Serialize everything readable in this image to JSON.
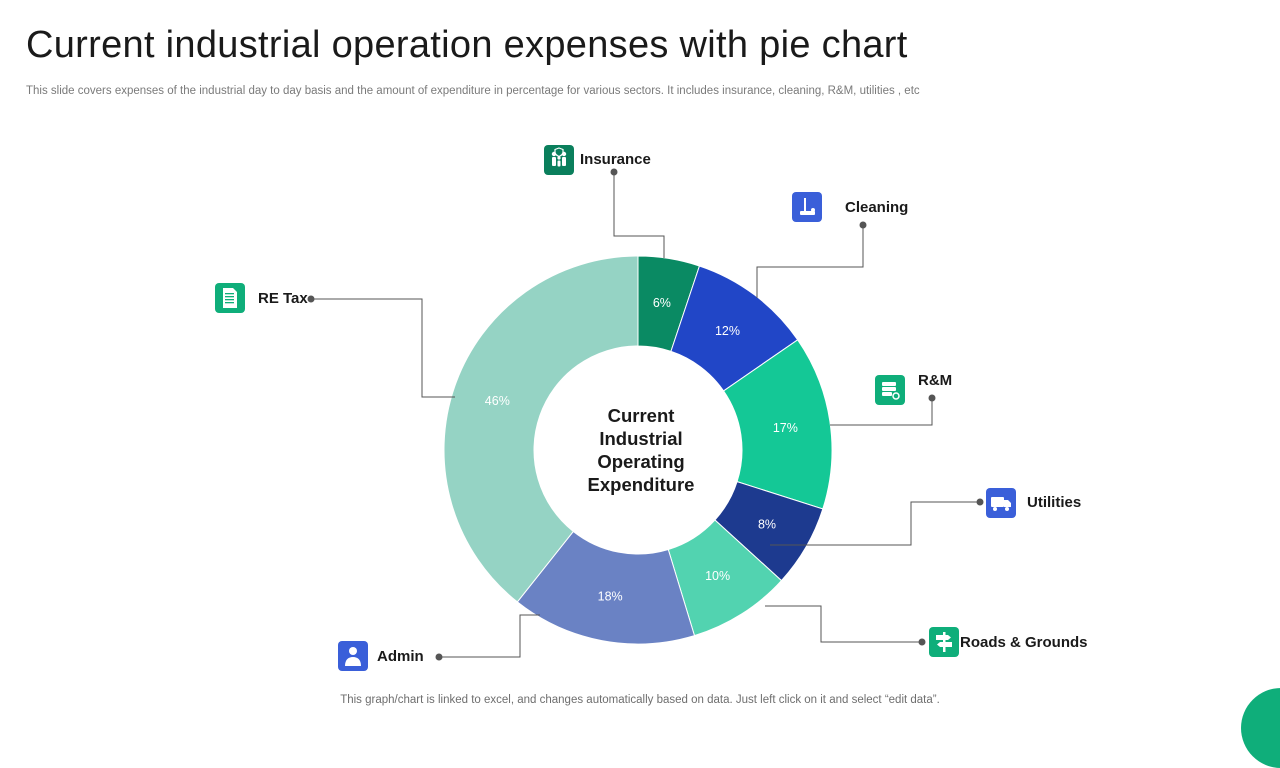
{
  "slide": {
    "title": "Current industrial operation expenses with pie chart",
    "subtitle": "This slide covers expenses of the industrial day to day basis  and the amount of expenditure in percentage for various sectors. It includes insurance, cleaning, R&M, utilities , etc",
    "footer": "This graph/chart is linked to excel,  and changes automatically based on data. Just left click on it and select “edit data”."
  },
  "chart_data": {
    "type": "pie",
    "variant": "donut",
    "center_label": [
      "Current",
      "Industrial",
      "Operating",
      "Expenditure"
    ],
    "unit": "%",
    "slices": [
      {
        "name": "Insurance",
        "value": 6,
        "color": "#0a8a63",
        "icon": "family-shield-icon"
      },
      {
        "name": "Cleaning",
        "value": 12,
        "color": "#2146c7",
        "icon": "cleaning-vacuum-icon"
      },
      {
        "name": "R&M",
        "value": 17,
        "color": "#14c896",
        "icon": "maintenance-tools-icon"
      },
      {
        "name": "Utilities",
        "value": 8,
        "color": "#1d3a8f",
        "icon": "truck-icon"
      },
      {
        "name": "Roads & Grounds",
        "value": 10,
        "color": "#52d3b0",
        "icon": "signpost-icon"
      },
      {
        "name": "Admin",
        "value": 18,
        "color": "#6a82c4",
        "icon": "admin-person-icon"
      },
      {
        "name": "RE Tax",
        "value": 46,
        "color": "#95d3c4",
        "icon": "tax-document-icon"
      }
    ],
    "icon_colors": {
      "green": "#0fae7a",
      "blue": "#3a5fd9",
      "dark_green": "#0a7f5c"
    }
  }
}
